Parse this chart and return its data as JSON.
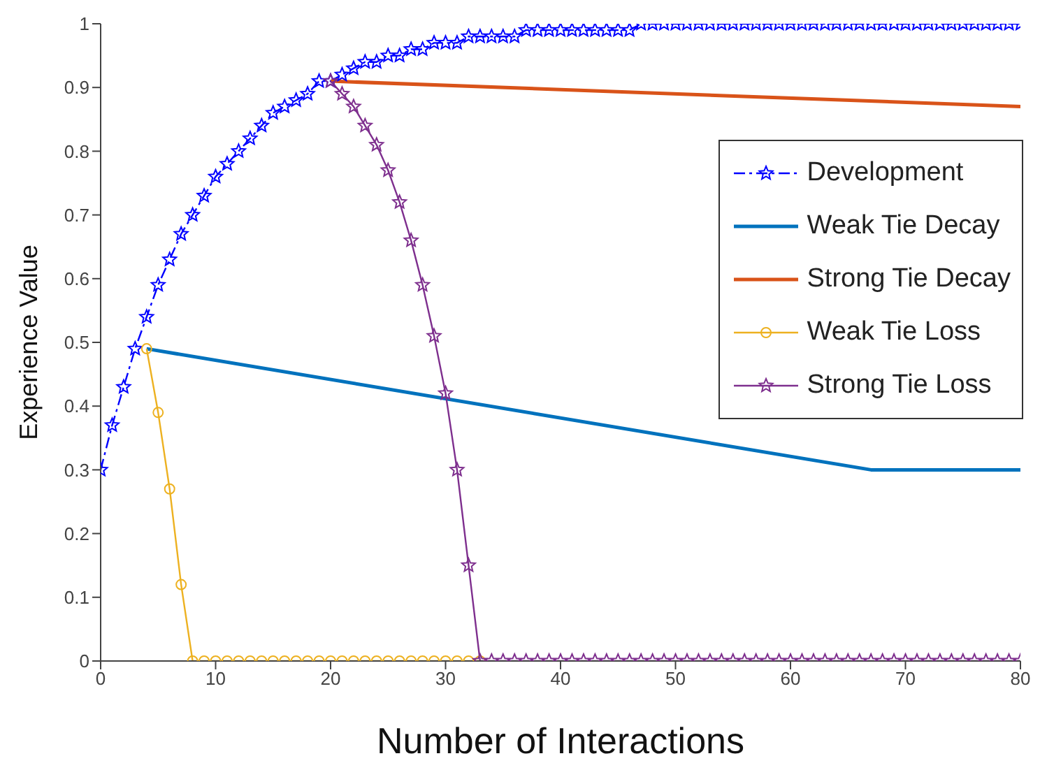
{
  "chart_data": {
    "type": "line",
    "xlabel": "Number of Interactions",
    "ylabel": "Experience Value",
    "xlim": [
      0,
      80
    ],
    "xticks": [
      0,
      10,
      20,
      30,
      40,
      50,
      60,
      70,
      80
    ],
    "ylim": [
      0,
      1
    ],
    "yticks": [
      0,
      0.1,
      0.2,
      0.3,
      0.4,
      0.5,
      0.6,
      0.7,
      0.8,
      0.9,
      1
    ],
    "legend": "right",
    "x": [
      0,
      1,
      2,
      3,
      4,
      5,
      6,
      7,
      8,
      9,
      10,
      11,
      12,
      13,
      14,
      15,
      16,
      17,
      18,
      19,
      20,
      21,
      22,
      23,
      24,
      25,
      26,
      27,
      28,
      29,
      30,
      31,
      32,
      33,
      34,
      35,
      36,
      37,
      38,
      39,
      40,
      41,
      42,
      43,
      44,
      45,
      46,
      47,
      48,
      49,
      50,
      51,
      52,
      53,
      54,
      55,
      56,
      57,
      58,
      59,
      60,
      61,
      62,
      63,
      64,
      65,
      66,
      67,
      68,
      69,
      70,
      71,
      72,
      73,
      74,
      75,
      76,
      77,
      78,
      79,
      80
    ],
    "series": [
      {
        "name": "Development",
        "color": "#0000ff",
        "marker": "star",
        "line_style": "dashed",
        "values": [
          0.3,
          0.37,
          0.43,
          0.49,
          0.54,
          0.59,
          0.63,
          0.67,
          0.7,
          0.73,
          0.76,
          0.78,
          0.8,
          0.82,
          0.84,
          0.86,
          0.87,
          0.88,
          0.89,
          0.91,
          0.91,
          0.92,
          0.93,
          0.94,
          0.94,
          0.95,
          0.95,
          0.96,
          0.96,
          0.97,
          0.97,
          0.97,
          0.98,
          0.98,
          0.98,
          0.98,
          0.98,
          0.99,
          0.99,
          0.99,
          0.99,
          0.99,
          0.99,
          0.99,
          0.99,
          0.99,
          0.99,
          1,
          1,
          1,
          1,
          1,
          1,
          1,
          1,
          1,
          1,
          1,
          1,
          1,
          1,
          1,
          1,
          1,
          1,
          1,
          1,
          1,
          1,
          1,
          1,
          1,
          1,
          1,
          1,
          1,
          1,
          1,
          1,
          1,
          1
        ]
      },
      {
        "name": "Weak Tie Decay",
        "color": "#0072bd",
        "marker": "none",
        "line_style": "solid",
        "x": [
          4,
          67,
          80
        ],
        "values": [
          0.49,
          0.3,
          0.3
        ]
      },
      {
        "name": "Strong Tie Decay",
        "color": "#d95319",
        "marker": "none",
        "line_style": "solid",
        "x": [
          20,
          80
        ],
        "values": [
          0.91,
          0.87
        ]
      },
      {
        "name": "Weak Tie Loss",
        "color": "#edb120",
        "marker": "circle",
        "line_style": "solid",
        "x": [
          4,
          5,
          6,
          7,
          8,
          9,
          10,
          11,
          12,
          13,
          14,
          15,
          16,
          17,
          18,
          19,
          20,
          21,
          22,
          23,
          24,
          25,
          26,
          27,
          28,
          29,
          30,
          31,
          32,
          33
        ],
        "values": [
          0.49,
          0.39,
          0.27,
          0.12,
          0,
          0,
          0,
          0,
          0,
          0,
          0,
          0,
          0,
          0,
          0,
          0,
          0,
          0,
          0,
          0,
          0,
          0,
          0,
          0,
          0,
          0,
          0,
          0,
          0,
          0
        ]
      },
      {
        "name": "Strong Tie Loss",
        "color": "#7e2f8e",
        "marker": "star",
        "line_style": "solid",
        "x": [
          20,
          21,
          22,
          23,
          24,
          25,
          26,
          27,
          28,
          29,
          30,
          31,
          32,
          33,
          34,
          35,
          36,
          37,
          38,
          39,
          40,
          41,
          42,
          43,
          44,
          45,
          46,
          47,
          48,
          49,
          50,
          51,
          52,
          53,
          54,
          55,
          56,
          57,
          58,
          59,
          60,
          61,
          62,
          63,
          64,
          65,
          66,
          67,
          68,
          69,
          70,
          71,
          72,
          73,
          74,
          75,
          76,
          77,
          78,
          79,
          80
        ],
        "values": [
          0.91,
          0.89,
          0.87,
          0.84,
          0.81,
          0.77,
          0.72,
          0.66,
          0.59,
          0.51,
          0.42,
          0.3,
          0.15,
          0,
          0,
          0,
          0,
          0,
          0,
          0,
          0,
          0,
          0,
          0,
          0,
          0,
          0,
          0,
          0,
          0,
          0,
          0,
          0,
          0,
          0,
          0,
          0,
          0,
          0,
          0,
          0,
          0,
          0,
          0,
          0,
          0,
          0,
          0,
          0,
          0,
          0,
          0,
          0,
          0,
          0,
          0,
          0,
          0,
          0,
          0,
          0
        ]
      }
    ]
  }
}
